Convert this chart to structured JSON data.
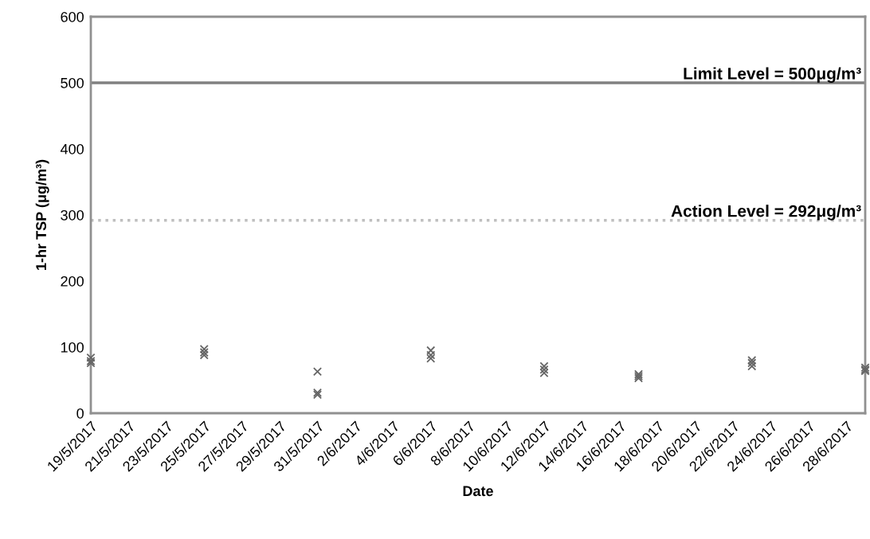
{
  "chart_data": {
    "type": "scatter",
    "xlabel": "Date",
    "ylabel": "1-hr TSP (μg/m³)",
    "series": [
      {
        "color": "#666666",
        "marker": "cross",
        "x": [
          "2017-05-19",
          "2017-05-19",
          "2017-05-19",
          "2017-05-25",
          "2017-05-25",
          "2017-05-25",
          "2017-05-31",
          "2017-05-31",
          "2017-05-31",
          "2017-06-06",
          "2017-06-06",
          "2017-06-06",
          "2017-06-12",
          "2017-06-12",
          "2017-06-12",
          "2017-06-17",
          "2017-06-17",
          "2017-06-17",
          "2017-06-23",
          "2017-06-23",
          "2017-06-23",
          "2017-06-29",
          "2017-06-29",
          "2017-06-29"
        ],
        "values": [
          84,
          79,
          76,
          97,
          92,
          88,
          63,
          31,
          28,
          95,
          88,
          83,
          71,
          66,
          61,
          59,
          56,
          53,
          80,
          76,
          71,
          69,
          66,
          64
        ]
      }
    ],
    "xlim": [
      "2017-05-19",
      "2017-06-29"
    ],
    "xticks": [
      {
        "value": "2017-05-19",
        "label": "19/5/2017"
      },
      {
        "value": "2017-05-21",
        "label": "21/5/2017"
      },
      {
        "value": "2017-05-23",
        "label": "23/5/2017"
      },
      {
        "value": "2017-05-25",
        "label": "25/5/2017"
      },
      {
        "value": "2017-05-27",
        "label": "27/5/2017"
      },
      {
        "value": "2017-05-29",
        "label": "29/5/2017"
      },
      {
        "value": "2017-05-31",
        "label": "31/5/2017"
      },
      {
        "value": "2017-06-02",
        "label": "2/6/2017"
      },
      {
        "value": "2017-06-04",
        "label": "4/6/2017"
      },
      {
        "value": "2017-06-06",
        "label": "6/6/2017"
      },
      {
        "value": "2017-06-08",
        "label": "8/6/2017"
      },
      {
        "value": "2017-06-10",
        "label": "10/6/2017"
      },
      {
        "value": "2017-06-12",
        "label": "12/6/2017"
      },
      {
        "value": "2017-06-14",
        "label": "14/6/2017"
      },
      {
        "value": "2017-06-16",
        "label": "16/6/2017"
      },
      {
        "value": "2017-06-18",
        "label": "18/6/2017"
      },
      {
        "value": "2017-06-20",
        "label": "20/6/2017"
      },
      {
        "value": "2017-06-22",
        "label": "22/6/2017"
      },
      {
        "value": "2017-06-24",
        "label": "24/6/2017"
      },
      {
        "value": "2017-06-26",
        "label": "26/6/2017"
      },
      {
        "value": "2017-06-28",
        "label": "28/6/2017"
      }
    ],
    "ylim": [
      0,
      600
    ],
    "yticks": [
      0,
      100,
      200,
      300,
      400,
      500,
      600
    ],
    "ref_lines": [
      {
        "axis": "y",
        "value": 500,
        "label": "Limit Level = 500μg/m³",
        "color": "#808080",
        "line_style": "solid"
      },
      {
        "axis": "y",
        "value": 292,
        "label": "Action Level = 292μg/m³",
        "color": "#bfbfbf",
        "line_style": "dotted"
      }
    ],
    "grid": false,
    "legend": false
  }
}
